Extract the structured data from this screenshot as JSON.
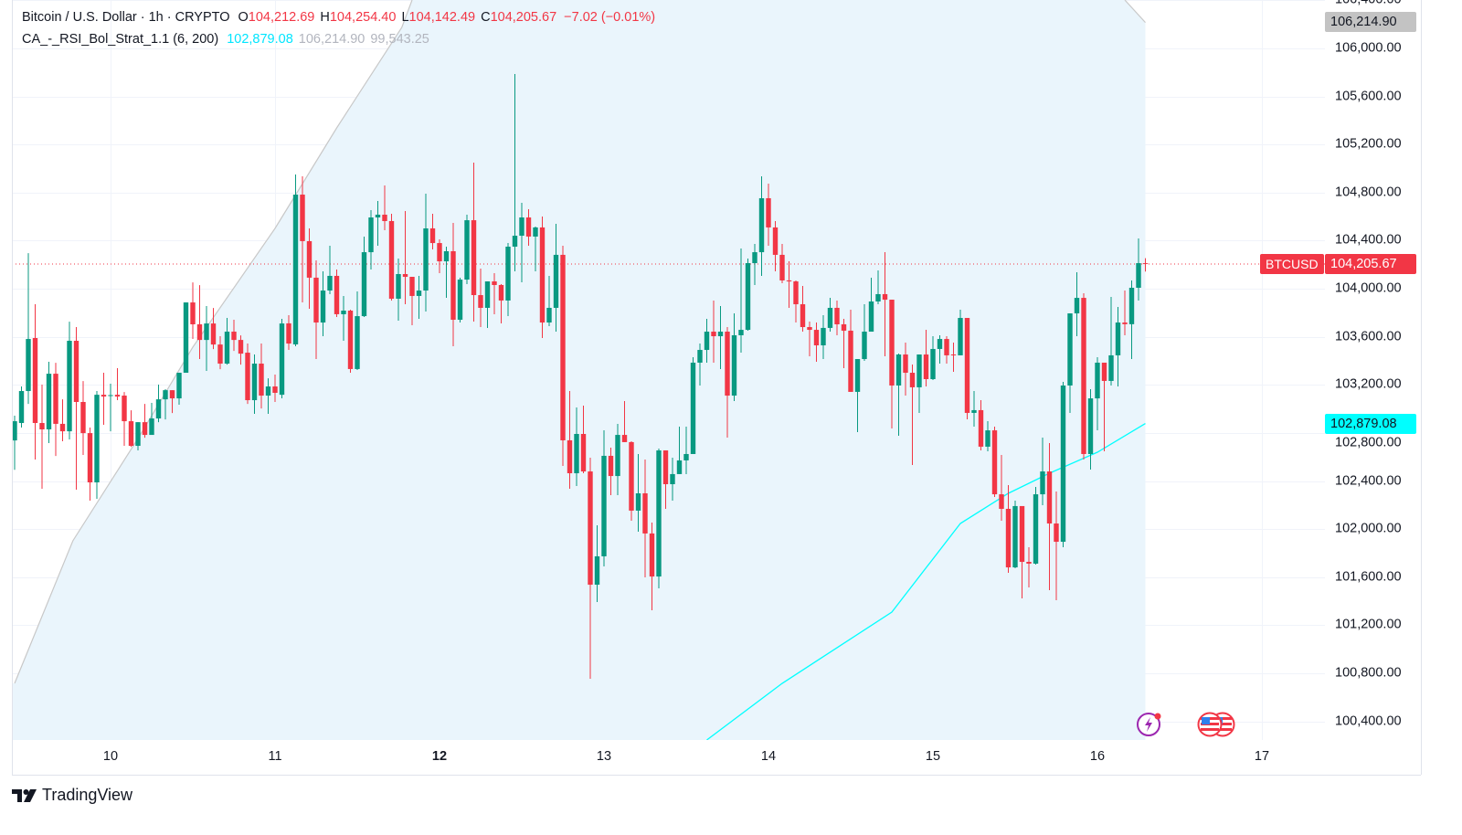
{
  "header": {
    "symbol": "Bitcoin / U.S. Dollar · 1h · CRYPTO",
    "o_label": "O",
    "o": "104,212.69",
    "h_label": "H",
    "h": "104,254.40",
    "l_label": "L",
    "l": "104,142.49",
    "c_label": "C",
    "c": "104,205.67",
    "change": "−7.02 (−0.01%)"
  },
  "indicator": {
    "name": "CA_-_RSI_Bol_Strat_1.1 (6, 200)",
    "basis": "102,879.08",
    "upper": "106,214.90",
    "lower": "99,543.25"
  },
  "price_tags": {
    "upper": "106,214.90",
    "symbol": "BTCUSD",
    "last": "104,205.67",
    "basis": "102,879.08"
  },
  "brand": "TradingView",
  "icons": [
    "lightning-event-icon",
    "us-flag-event-icon",
    "us-flag-event-icon"
  ],
  "colors": {
    "up": "#089981",
    "down": "#F23645",
    "basis": "#00FFFF",
    "band": "#C8C8C8",
    "band_fill": "#EAF5FC"
  },
  "chart_data": {
    "type": "candlestick",
    "title": "Bitcoin / U.S. Dollar · 1h · CRYPTO",
    "interval": "1h",
    "ylim": [
      100246,
      106402
    ],
    "y_ticks": [
      {
        "value": 106400,
        "label": "106,400.00"
      },
      {
        "value": 106000,
        "label": "106,000.00"
      },
      {
        "value": 105600,
        "label": "105,600.00"
      },
      {
        "value": 105200,
        "label": "105,200.00"
      },
      {
        "value": 104800,
        "label": "104,800.00"
      },
      {
        "value": 104400,
        "label": "104,400.00"
      },
      {
        "value": 104000,
        "label": "104,000.00"
      },
      {
        "value": 103600,
        "label": "103,600.00"
      },
      {
        "value": 103200,
        "label": "103,200.00"
      },
      {
        "value": 102800,
        "label": "102,800.00"
      },
      {
        "value": 102400,
        "label": "102,400.00"
      },
      {
        "value": 102000,
        "label": "102,000.00"
      },
      {
        "value": 101600,
        "label": "101,600.00"
      },
      {
        "value": 101200,
        "label": "101,200.00"
      },
      {
        "value": 100800,
        "label": "100,800.00"
      },
      {
        "value": 100400,
        "label": "100,400.00"
      }
    ],
    "x_ticks": [
      {
        "label": "10",
        "bar": 14,
        "bold": false
      },
      {
        "label": "11",
        "bar": 38,
        "bold": false
      },
      {
        "label": "12",
        "bar": 62,
        "bold": true
      },
      {
        "label": "13",
        "bar": 86,
        "bold": false
      },
      {
        "label": "14",
        "bar": 110,
        "bold": false
      },
      {
        "label": "15",
        "bar": 134,
        "bold": false
      },
      {
        "label": "16",
        "bar": 158,
        "bold": false
      },
      {
        "label": "17",
        "bar": 182,
        "bold": false
      }
    ],
    "last_price": 104205.67,
    "ohlc_fields": [
      "open",
      "high",
      "low",
      "close"
    ],
    "candles": [
      [
        102738,
        102944,
        102494,
        102898
      ],
      [
        102883,
        103187,
        102845,
        103149
      ],
      [
        103149,
        104296,
        103042,
        103582
      ],
      [
        103590,
        103871,
        102579,
        102883
      ],
      [
        102883,
        103202,
        102336,
        102830
      ],
      [
        102830,
        103392,
        102716,
        103293
      ],
      [
        103293,
        103384,
        102609,
        102876
      ],
      [
        102876,
        103080,
        102731,
        102814
      ],
      [
        102814,
        103726,
        102746,
        103567
      ],
      [
        103567,
        103681,
        102328,
        103058
      ],
      [
        103058,
        103232,
        102617,
        102799
      ],
      [
        102799,
        102845,
        102237,
        102389
      ],
      [
        102389,
        103149,
        102252,
        103118
      ],
      [
        103118,
        103301,
        102868,
        103103
      ],
      [
        103111,
        103210,
        102814,
        103115
      ],
      [
        103118,
        103339,
        103073,
        103103
      ],
      [
        103111,
        103141,
        102693,
        102898
      ],
      [
        102898,
        102989,
        102685,
        102693
      ],
      [
        102693,
        102890,
        102655,
        102890
      ],
      [
        102890,
        103042,
        102761,
        102784
      ],
      [
        102784,
        103050,
        102784,
        102921
      ],
      [
        102921,
        103202,
        102890,
        103080
      ],
      [
        103080,
        103164,
        102913,
        103156
      ],
      [
        103156,
        103156,
        102966,
        103088
      ],
      [
        103088,
        103301,
        103035,
        103301
      ],
      [
        103301,
        103886,
        103301,
        103886
      ],
      [
        103886,
        104053,
        103582,
        103704
      ],
      [
        103704,
        104030,
        103415,
        103574
      ],
      [
        103574,
        103856,
        103316,
        103711
      ],
      [
        103711,
        103840,
        103498,
        103536
      ],
      [
        103536,
        103605,
        103331,
        103377
      ],
      [
        103377,
        103757,
        103369,
        103643
      ],
      [
        103643,
        103742,
        103483,
        103574
      ],
      [
        103574,
        103612,
        103369,
        103460
      ],
      [
        103468,
        103544,
        103042,
        103073
      ],
      [
        103073,
        103453,
        102959,
        103377
      ],
      [
        103377,
        103544,
        103004,
        103111
      ],
      [
        103111,
        103255,
        102959,
        103187
      ],
      [
        103187,
        103286,
        103058,
        103134
      ],
      [
        103118,
        103750,
        103088,
        103711
      ],
      [
        103712,
        103780,
        103491,
        103544
      ],
      [
        103537,
        104950,
        103522,
        104783
      ],
      [
        104783,
        104935,
        103886,
        104396
      ],
      [
        104396,
        104502,
        103833,
        104092
      ],
      [
        104092,
        104236,
        103415,
        103719
      ],
      [
        103719,
        104145,
        103605,
        103985
      ],
      [
        103985,
        104358,
        103955,
        104107
      ],
      [
        104107,
        104160,
        103765,
        103788
      ],
      [
        103788,
        103940,
        103567,
        103818
      ],
      [
        103818,
        103826,
        103301,
        103332
      ],
      [
        103332,
        103978,
        103324,
        103772
      ],
      [
        103772,
        104434,
        103765,
        104304
      ],
      [
        104304,
        104654,
        104160,
        104593
      ],
      [
        104593,
        104730,
        104358,
        104616
      ],
      [
        104616,
        104859,
        104487,
        104563
      ],
      [
        104563,
        104624,
        103902,
        103917
      ],
      [
        103917,
        104251,
        103734,
        104122
      ],
      [
        104122,
        104646,
        103871,
        104099
      ],
      [
        104099,
        104099,
        103696,
        103940
      ],
      [
        103940,
        104107,
        103750,
        103985
      ],
      [
        103985,
        104791,
        103810,
        104502
      ],
      [
        104502,
        104624,
        104327,
        104380
      ],
      [
        104380,
        104411,
        104130,
        104228
      ],
      [
        104228,
        104350,
        103924,
        104312
      ],
      [
        104312,
        104548,
        103522,
        103742
      ],
      [
        103742,
        104092,
        103719,
        104076
      ],
      [
        104076,
        104616,
        104038,
        104570
      ],
      [
        104570,
        105049,
        103727,
        103947
      ],
      [
        103947,
        104168,
        103681,
        103841
      ],
      [
        103841,
        104061,
        103674,
        104061
      ],
      [
        104061,
        104130,
        103788,
        104031
      ],
      [
        104031,
        104038,
        103712,
        103902
      ],
      [
        103902,
        104380,
        103772,
        104350
      ],
      [
        104350,
        105786,
        104145,
        104441
      ],
      [
        104441,
        104715,
        104054,
        104593
      ],
      [
        104593,
        104662,
        104358,
        104434
      ],
      [
        104434,
        104517,
        104145,
        104510
      ],
      [
        104510,
        104601,
        103590,
        103719
      ],
      [
        103719,
        104107,
        103689,
        103841
      ],
      [
        103841,
        104540,
        103643,
        104282
      ],
      [
        104282,
        104358,
        102526,
        102739
      ],
      [
        102739,
        103149,
        102336,
        102465
      ],
      [
        102465,
        103012,
        102359,
        102792
      ],
      [
        102792,
        103028,
        102465,
        102480
      ],
      [
        102480,
        102594,
        100755,
        101538
      ],
      [
        101538,
        102032,
        101394,
        101774
      ],
      [
        101774,
        102822,
        101690,
        102610
      ],
      [
        102610,
        102678,
        102283,
        102442
      ],
      [
        102442,
        102876,
        102283,
        102784
      ],
      [
        102784,
        103066,
        102724,
        102724
      ],
      [
        102724,
        102731,
        102070,
        102154
      ],
      [
        102154,
        102625,
        101979,
        102298
      ],
      [
        102298,
        102579,
        101599,
        101964
      ],
      [
        101964,
        102055,
        101325,
        101606
      ],
      [
        101606,
        102670,
        101508,
        102655
      ],
      [
        102655,
        102655,
        102169,
        102374
      ],
      [
        102374,
        102594,
        102237,
        102458
      ],
      [
        102458,
        102853,
        102458,
        102572
      ],
      [
        102572,
        102853,
        102458,
        102625
      ],
      [
        102625,
        103430,
        102625,
        103385
      ],
      [
        103385,
        103544,
        103195,
        103491
      ],
      [
        103491,
        103750,
        103385,
        103643
      ],
      [
        103643,
        103902,
        103385,
        103605
      ],
      [
        103605,
        103856,
        103332,
        103643
      ],
      [
        103643,
        103681,
        102762,
        103111
      ],
      [
        103111,
        103795,
        103066,
        103613
      ],
      [
        103613,
        104335,
        103468,
        103658
      ],
      [
        103658,
        104251,
        103651,
        104213
      ],
      [
        104213,
        104373,
        104031,
        104304
      ],
      [
        104304,
        104935,
        104107,
        104753
      ],
      [
        104753,
        104874,
        104358,
        104510
      ],
      [
        104510,
        104563,
        104145,
        104282
      ],
      [
        104282,
        104373,
        104046,
        104069
      ],
      [
        104069,
        104228,
        103841,
        104061
      ],
      [
        104061,
        104069,
        103719,
        103871
      ],
      [
        103871,
        104023,
        103643,
        103681
      ],
      [
        103681,
        103727,
        103438,
        103658
      ],
      [
        103658,
        103719,
        103392,
        103529
      ],
      [
        103529,
        103780,
        103415,
        103674
      ],
      [
        103674,
        103924,
        103643,
        103841
      ],
      [
        103841,
        103902,
        103613,
        103704
      ],
      [
        103704,
        103750,
        103339,
        103651
      ],
      [
        103651,
        103826,
        103142,
        103142
      ],
      [
        103142,
        103415,
        102807,
        103415
      ],
      [
        103415,
        103871,
        103400,
        103643
      ],
      [
        103643,
        104092,
        103643,
        103894
      ],
      [
        103894,
        104152,
        103871,
        103955
      ],
      [
        103955,
        104304,
        103438,
        103909
      ],
      [
        103909,
        103909,
        102838,
        103195
      ],
      [
        103195,
        103461,
        102777,
        103453
      ],
      [
        103453,
        103552,
        103111,
        103301
      ],
      [
        103301,
        103370,
        102534,
        103180
      ],
      [
        103180,
        103453,
        102967,
        103453
      ],
      [
        103453,
        103658,
        103187,
        103248
      ],
      [
        103248,
        103605,
        103240,
        103499
      ],
      [
        103499,
        103613,
        103377,
        103582
      ],
      [
        103582,
        103605,
        103377,
        103446
      ],
      [
        103453,
        103552,
        103309,
        103446
      ],
      [
        103446,
        103826,
        103446,
        103757
      ],
      [
        103757,
        103757,
        102914,
        102967
      ],
      [
        102967,
        103149,
        102853,
        102990
      ],
      [
        102990,
        103073,
        102655,
        102686
      ],
      [
        102686,
        102898,
        102648,
        102822
      ],
      [
        102822,
        102853,
        102268,
        102290
      ],
      [
        102290,
        102617,
        102070,
        102169
      ],
      [
        102169,
        102366,
        101637,
        101682
      ],
      [
        101682,
        102237,
        101675,
        102192
      ],
      [
        102192,
        102192,
        101424,
        101728
      ],
      [
        101728,
        101850,
        101515,
        101713
      ],
      [
        101713,
        102351,
        101705,
        102290
      ],
      [
        102290,
        102762,
        102199,
        102480
      ],
      [
        102480,
        102716,
        101492,
        102047
      ],
      [
        102047,
        102313,
        101409,
        101895
      ],
      [
        101895,
        103225,
        101850,
        103195
      ],
      [
        103195,
        103795,
        102967,
        103795
      ],
      [
        103795,
        104137,
        103605,
        103924
      ],
      [
        103924,
        103962,
        102579,
        102625
      ],
      [
        102625,
        103164,
        102496,
        103088
      ],
      [
        103088,
        103430,
        102822,
        103385
      ],
      [
        103385,
        103385,
        102648,
        103233
      ],
      [
        103233,
        103932,
        103195,
        103446
      ],
      [
        103446,
        103848,
        103187,
        103719
      ],
      [
        103719,
        103985,
        103613,
        103705
      ],
      [
        103705,
        104069,
        103415,
        104008
      ],
      [
        104008,
        104418,
        103902,
        104213
      ],
      [
        104212.69,
        104254.4,
        104142.49,
        104205.67
      ]
    ],
    "series": [
      {
        "name": "Bollinger upper",
        "segments": [
          [
            [
              0,
              100717
            ],
            [
              8.5,
              101903
            ],
            [
              18,
              102754
            ],
            [
              26,
              103514
            ],
            [
              38,
              104502
            ],
            [
              47,
              105338
            ],
            [
              56.5,
              106174
            ],
            [
              58,
              106402
            ]
          ],
          [
            [
              162,
              106402
            ],
            [
              165,
              106215
            ]
          ]
        ]
      },
      {
        "name": "Basis",
        "points": [
          [
            101,
            100246
          ],
          [
            112,
            100717
          ],
          [
            128,
            101310
          ],
          [
            138,
            102047
          ],
          [
            145,
            102298
          ],
          [
            151,
            102465
          ],
          [
            158,
            102640
          ],
          [
            165,
            102879
          ]
        ]
      }
    ]
  }
}
